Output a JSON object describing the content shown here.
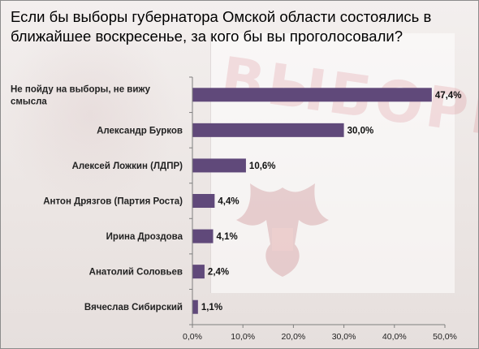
{
  "chart_data": {
    "type": "bar",
    "orientation": "horizontal",
    "title": "Если бы выборы губернатора  Омской области состоялись в ближайшее воскресенье, за кого бы вы проголосовали?",
    "categories": [
      "Не пойду на выборы, не вижу смысла",
      "Александр Бурков",
      "Алексей Ложкин (ЛДПР)",
      "Антон Дрязгов (Партия Роста)",
      "Ирина Дроздова",
      "Анатолий Соловьев",
      "Вячеслав Сибирский"
    ],
    "category_lines": [
      [
        "Не пойду на выборы, не вижу",
        "смысла"
      ],
      [
        "Александр Бурков"
      ],
      [
        "Алексей Ложкин (ЛДПР)"
      ],
      [
        "Антон Дрязгов (Партия Роста)"
      ],
      [
        "Ирина Дроздова"
      ],
      [
        "Анатолий Соловьев"
      ],
      [
        "Вячеслав Сибирский"
      ]
    ],
    "values": [
      47.4,
      30.0,
      10.6,
      4.4,
      4.1,
      2.4,
      1.1
    ],
    "value_labels": [
      "47,4%",
      "30,0%",
      "10,6%",
      "4,4%",
      "4,1%",
      "2,4%",
      "1,1%"
    ],
    "xlim": [
      0,
      50
    ],
    "x_ticks": [
      0,
      10,
      20,
      30,
      40,
      50
    ],
    "x_tick_labels": [
      "0,0%",
      "10,0%",
      "20,0%",
      "30,0%",
      "40,0%",
      "50,0%"
    ],
    "grid": false,
    "legend": "none",
    "bar_color": "#60497a"
  },
  "background": {
    "word": "ВЫБОРЫ"
  }
}
